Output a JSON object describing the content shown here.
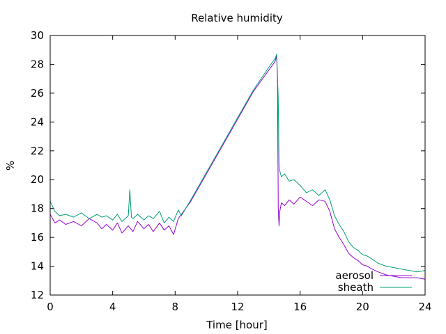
{
  "chart_data": {
    "type": "line",
    "title": "Relative humidity",
    "xlabel": "Time [hour]",
    "ylabel": "%",
    "xlim": [
      0,
      24
    ],
    "ylim": [
      12,
      30
    ],
    "xticks": [
      0,
      4,
      8,
      12,
      16,
      20,
      24
    ],
    "yticks": [
      12,
      14,
      16,
      18,
      20,
      22,
      24,
      26,
      28,
      30
    ],
    "legend_position": "bottom-right",
    "series": [
      {
        "name": "aerosol",
        "color": "#9400d3",
        "x": [
          0,
          0.3,
          0.6,
          1,
          1.5,
          2,
          2.5,
          3,
          3.3,
          3.6,
          4,
          4.3,
          4.6,
          5,
          5.3,
          5.6,
          6,
          6.3,
          6.6,
          7,
          7.3,
          7.6,
          7.9,
          8.2,
          8.4,
          9,
          10,
          11,
          12,
          13,
          14,
          14.4,
          14.5,
          14.55,
          14.6,
          14.65,
          14.7,
          14.8,
          15,
          15.3,
          15.6,
          16,
          16.4,
          16.8,
          17.2,
          17.6,
          17.9,
          18.2,
          18.5,
          18.8,
          19.1,
          19.4,
          19.7,
          20,
          20.3,
          20.6,
          21,
          21.5,
          22,
          22.5,
          23,
          23.5,
          24
        ],
        "y": [
          17.6,
          17.0,
          17.2,
          16.9,
          17.1,
          16.8,
          17.3,
          17.0,
          16.6,
          16.9,
          16.5,
          17.0,
          16.3,
          16.8,
          16.4,
          17.1,
          16.6,
          16.9,
          16.4,
          17.0,
          16.5,
          16.8,
          16.2,
          17.3,
          17.6,
          18.5,
          20.4,
          22.3,
          24.2,
          26.1,
          27.6,
          28.2,
          28.6,
          26.8,
          18.0,
          16.8,
          17.8,
          18.4,
          18.2,
          18.6,
          18.3,
          18.8,
          18.5,
          18.2,
          18.6,
          18.5,
          17.8,
          16.6,
          16.0,
          15.5,
          14.9,
          14.6,
          14.4,
          14.1,
          14.0,
          13.8,
          13.6,
          13.4,
          13.3,
          13.2,
          13.2,
          13.2,
          13.1
        ]
      },
      {
        "name": "sheath",
        "color": "#009e73",
        "x": [
          0,
          0.3,
          0.6,
          1,
          1.5,
          2,
          2.5,
          3,
          3.3,
          3.6,
          4,
          4.3,
          4.6,
          5,
          5.1,
          5.2,
          5.3,
          5.6,
          6,
          6.3,
          6.6,
          7,
          7.3,
          7.6,
          7.9,
          8.2,
          8.4,
          9,
          10,
          11,
          12,
          13,
          14,
          14.4,
          14.5,
          14.55,
          14.6,
          14.65,
          14.7,
          14.8,
          15,
          15.3,
          15.6,
          16,
          16.4,
          16.8,
          17.2,
          17.6,
          17.9,
          18.2,
          18.5,
          18.8,
          19.1,
          19.4,
          19.7,
          20,
          20.3,
          20.6,
          21,
          21.5,
          22,
          22.5,
          23,
          23.5,
          24
        ],
        "y": [
          18.5,
          17.8,
          17.5,
          17.6,
          17.4,
          17.7,
          17.3,
          17.6,
          17.4,
          17.5,
          17.2,
          17.6,
          17.1,
          17.5,
          19.3,
          17.4,
          17.3,
          17.6,
          17.2,
          17.5,
          17.3,
          17.8,
          17.0,
          17.4,
          17.1,
          17.9,
          17.5,
          18.6,
          20.5,
          22.4,
          24.3,
          26.2,
          27.8,
          28.4,
          28.7,
          27.2,
          25.6,
          21.0,
          20.6,
          20.2,
          20.4,
          19.9,
          20.0,
          19.6,
          19.1,
          19.3,
          18.9,
          19.3,
          18.6,
          17.5,
          16.9,
          16.4,
          15.7,
          15.3,
          15.1,
          14.8,
          14.7,
          14.5,
          14.2,
          14.0,
          13.9,
          13.8,
          13.7,
          13.6,
          13.7
        ]
      }
    ]
  }
}
